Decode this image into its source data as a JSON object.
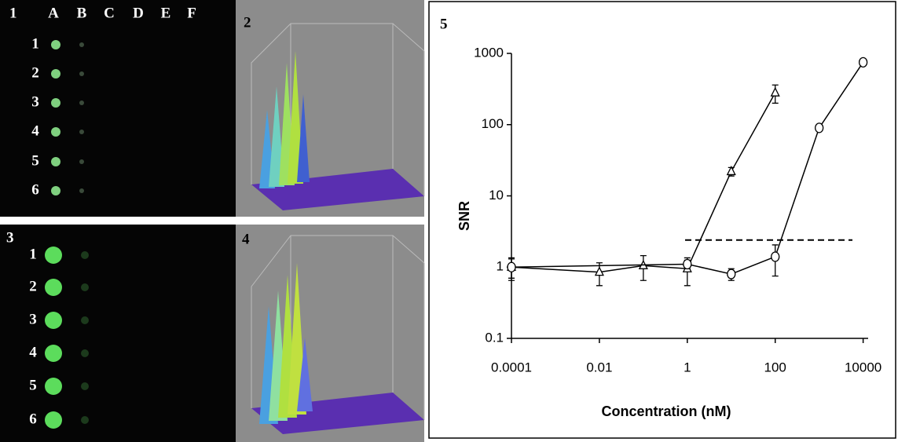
{
  "panels": {
    "labels": [
      "1",
      "2",
      "3",
      "4",
      "5"
    ],
    "columns": [
      "A",
      "B",
      "C",
      "D",
      "E",
      "F"
    ],
    "rows": [
      "1",
      "2",
      "3",
      "4",
      "5",
      "6"
    ]
  },
  "chart_data": {
    "type": "line",
    "x_label": "Concentration (nM)",
    "y_label": "SNR",
    "xscale": "log",
    "yscale": "log",
    "xlim": [
      0.0001,
      13000
    ],
    "xticks": [
      0.0001,
      0.01,
      1,
      100,
      10000
    ],
    "ylim": [
      0.1,
      1000
    ],
    "yticks": [
      0.1,
      1,
      10,
      100,
      1000
    ],
    "threshold": 2.4,
    "series": [
      {
        "marker": "triangle",
        "color": "#000000",
        "x": [
          0.0001,
          0.01,
          0.1,
          1,
          10,
          100
        ],
        "values": [
          1.0,
          0.85,
          1.05,
          0.95,
          22,
          280
        ],
        "errors": [
          0.35,
          0.3,
          0.4,
          0.4,
          3,
          80
        ]
      },
      {
        "marker": "circle",
        "color": "#000000",
        "x": [
          0.0001,
          1,
          10,
          100,
          1000,
          10000
        ],
        "values": [
          1.0,
          1.1,
          0.8,
          1.4,
          90,
          750
        ],
        "errors": [
          0.3,
          0.15,
          0.15,
          0.65,
          8,
          50
        ]
      }
    ]
  }
}
